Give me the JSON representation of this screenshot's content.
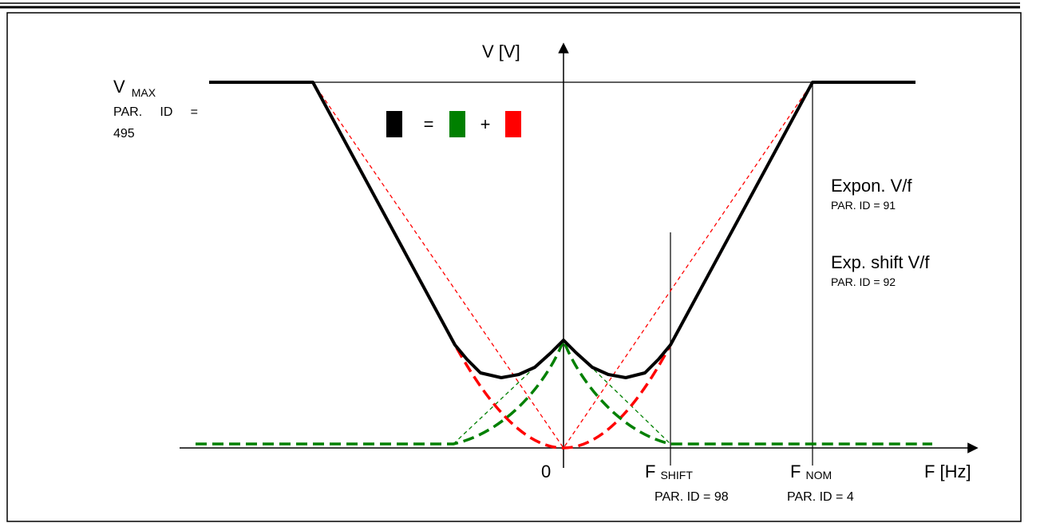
{
  "axes": {
    "y_label": "V [V]",
    "x_label": "F [Hz]",
    "origin_label": "0"
  },
  "vmax": {
    "label": "V",
    "label_sub": "MAX",
    "par_line1": "PAR.     ID     =",
    "par_line2": "495"
  },
  "legend": {
    "equals": "=",
    "plus": "+",
    "colors": {
      "total": "#000000",
      "green": "#008000",
      "red": "#ff0000"
    }
  },
  "expon": {
    "title": "Expon. V/f",
    "par": "PAR. ID = 91"
  },
  "exp_shift": {
    "title": "Exp. shift V/f",
    "par": "PAR. ID = 92"
  },
  "f_shift": {
    "label": "F",
    "label_sub": "SHIFT",
    "par": "PAR. ID = 98"
  },
  "f_nom": {
    "label": "F",
    "label_sub": "NOM",
    "par": "PAR. ID = 4"
  }
}
